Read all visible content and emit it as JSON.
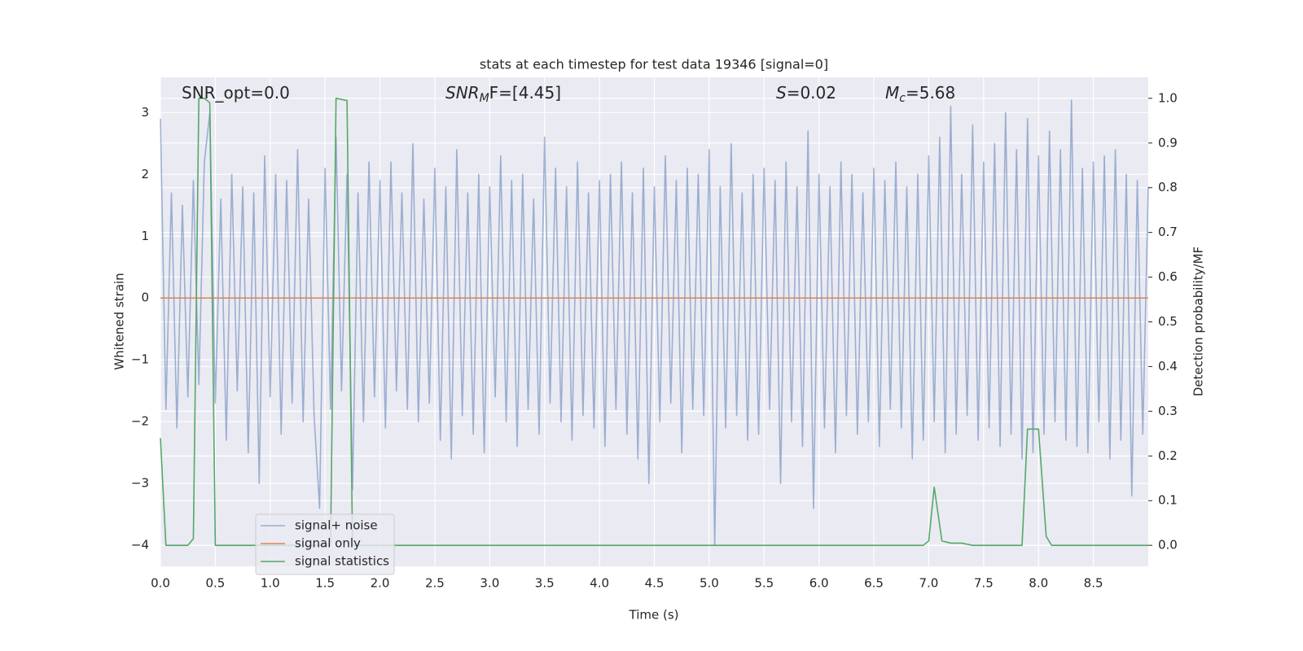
{
  "chart_data": {
    "type": "line",
    "title": "stats at each timestep for test data 19346 [signal=0]",
    "xlabel": "Time (s)",
    "ylabel": "Whitened strain",
    "y2label": "Detection probability/MF",
    "annotations": [
      {
        "base": "SNR_opt=0.0"
      },
      {
        "base": "SNR",
        "sub": "M",
        "tail": "F=[4.45]"
      },
      {
        "base": "S",
        "tail": "=0.02"
      },
      {
        "base": "M",
        "sub": "c",
        "tail": "=5.68"
      }
    ],
    "xlim": [
      0,
      9
    ],
    "ylim": [
      -4.34,
      3.57
    ],
    "y2lim": [
      -0.047,
      1.047
    ],
    "xticks": [
      {
        "value": 0,
        "label": "0.0"
      },
      0.5,
      {
        "value": 1,
        "label": "1.0"
      },
      1.5,
      {
        "value": 2,
        "label": "2.0"
      },
      2.5,
      {
        "value": 3,
        "label": "3.0"
      },
      3.5,
      {
        "value": 4,
        "label": "4.0"
      },
      4.5,
      {
        "value": 5,
        "label": "5.0"
      },
      5.5,
      {
        "value": 6,
        "label": "6.0"
      },
      6.5,
      {
        "value": 7,
        "label": "7.0"
      },
      7.5,
      {
        "value": 8,
        "label": "8.0"
      },
      8.5
    ],
    "yticks": [
      {
        "value": -4,
        "label": "−4"
      },
      {
        "value": -3,
        "label": "−3"
      },
      {
        "value": -2,
        "label": "−2"
      },
      {
        "value": -1,
        "label": "−1"
      },
      0,
      1,
      2,
      3
    ],
    "y2ticks": [
      {
        "value": 0,
        "label": "0.0"
      },
      0.1,
      0.2,
      0.3,
      0.4,
      0.5,
      0.6,
      0.7,
      0.8,
      0.9,
      {
        "value": 1,
        "label": "1.0"
      }
    ],
    "grid": true,
    "legend_loc": "lower left",
    "series": [
      {
        "name": "signal+ noise",
        "color": "#4c72b0",
        "opacity": 0.5,
        "x": [
          0,
          0.05,
          0.1,
          0.15,
          0.2,
          0.25,
          0.3,
          0.35,
          0.4,
          0.45,
          0.5,
          0.55,
          0.6,
          0.65,
          0.7,
          0.75,
          0.8,
          0.85,
          0.9,
          0.95,
          1,
          1.05,
          1.1,
          1.15,
          1.2,
          1.25,
          1.3,
          1.35,
          1.4,
          1.45,
          1.5,
          1.55,
          1.6,
          1.65,
          1.7,
          1.75,
          1.8,
          1.85,
          1.9,
          1.95,
          2,
          2.05,
          2.1,
          2.15,
          2.2,
          2.25,
          2.3,
          2.35,
          2.4,
          2.45,
          2.5,
          2.55,
          2.6,
          2.65,
          2.7,
          2.75,
          2.8,
          2.85,
          2.9,
          2.95,
          3,
          3.05,
          3.1,
          3.15,
          3.2,
          3.25,
          3.3,
          3.35,
          3.4,
          3.45,
          3.5,
          3.55,
          3.6,
          3.65,
          3.7,
          3.75,
          3.8,
          3.85,
          3.9,
          3.95,
          4,
          4.05,
          4.1,
          4.15,
          4.2,
          4.25,
          4.3,
          4.35,
          4.4,
          4.45,
          4.5,
          4.55,
          4.6,
          4.65,
          4.7,
          4.75,
          4.8,
          4.85,
          4.9,
          4.95,
          5,
          5.05,
          5.1,
          5.15,
          5.2,
          5.25,
          5.3,
          5.35,
          5.4,
          5.45,
          5.5,
          5.55,
          5.6,
          5.65,
          5.7,
          5.75,
          5.8,
          5.85,
          5.9,
          5.95,
          6,
          6.05,
          6.1,
          6.15,
          6.2,
          6.25,
          6.3,
          6.35,
          6.4,
          6.45,
          6.5,
          6.55,
          6.6,
          6.65,
          6.7,
          6.75,
          6.8,
          6.85,
          6.9,
          6.95,
          7,
          7.05,
          7.1,
          7.15,
          7.2,
          7.25,
          7.3,
          7.35,
          7.4,
          7.45,
          7.5,
          7.55,
          7.6,
          7.65,
          7.7,
          7.75,
          7.8,
          7.85,
          7.9,
          7.95,
          8,
          8.05,
          8.1,
          8.15,
          8.2,
          8.25,
          8.3,
          8.35,
          8.4,
          8.45,
          8.5,
          8.55,
          8.6,
          8.65,
          8.7,
          8.75,
          8.8,
          8.85,
          8.9,
          8.95,
          9
        ],
        "values": [
          2.9,
          -1.8,
          1.7,
          -2.1,
          1.5,
          -1.6,
          1.9,
          -1.4,
          2.2,
          3.0,
          -1.7,
          1.6,
          -2.3,
          2.0,
          -1.5,
          1.8,
          -2.5,
          1.7,
          -3.0,
          2.3,
          -1.6,
          2.0,
          -2.2,
          1.9,
          -1.7,
          2.4,
          -2.0,
          1.6,
          -1.9,
          -3.4,
          2.1,
          -1.8,
          2.6,
          -1.5,
          2.0,
          -3.1,
          1.7,
          -2.0,
          2.2,
          -1.6,
          1.9,
          -2.1,
          2.2,
          -1.5,
          1.7,
          -1.8,
          2.5,
          -2.0,
          1.6,
          -1.7,
          2.1,
          -2.3,
          1.8,
          -2.6,
          2.4,
          -1.9,
          1.7,
          -2.2,
          2.0,
          -2.5,
          1.8,
          -1.6,
          2.3,
          -2.0,
          1.9,
          -2.4,
          2.0,
          -1.8,
          1.6,
          -2.2,
          2.6,
          -1.7,
          2.1,
          -2.0,
          1.8,
          -2.3,
          2.2,
          -1.9,
          1.7,
          -2.1,
          1.9,
          -2.4,
          2.0,
          -1.8,
          2.2,
          -2.2,
          1.7,
          -2.6,
          2.1,
          -3.0,
          1.8,
          -2.0,
          2.3,
          -1.7,
          1.9,
          -2.5,
          2.1,
          -1.8,
          2.0,
          -1.9,
          2.4,
          -4.0,
          1.8,
          -2.1,
          2.5,
          -1.9,
          1.7,
          -2.3,
          2.0,
          -2.2,
          2.1,
          -1.8,
          1.9,
          -3.0,
          2.2,
          -2.0,
          1.8,
          -2.4,
          2.7,
          -3.4,
          2.0,
          -2.1,
          1.8,
          -2.5,
          2.2,
          -1.9,
          2.0,
          -2.2,
          1.7,
          -2.0,
          2.1,
          -2.4,
          1.9,
          -1.8,
          2.2,
          -2.1,
          1.8,
          -2.6,
          2.0,
          -2.3,
          2.3,
          -2.0,
          2.6,
          -2.5,
          3.1,
          -2.2,
          2.0,
          -1.9,
          2.8,
          -2.3,
          2.2,
          -2.1,
          2.5,
          -2.4,
          3.0,
          -2.2,
          2.4,
          -2.6,
          2.9,
          -2.5,
          2.3,
          -2.2,
          2.7,
          -2.0,
          2.4,
          -2.3,
          3.2,
          -2.4,
          2.1,
          -2.5,
          2.2,
          -2.0,
          2.3,
          -2.6,
          2.4,
          -2.3,
          2.0,
          -3.2,
          1.9,
          -2.2,
          1.8
        ]
      },
      {
        "name": "signal only",
        "color": "#dd8452",
        "x": [
          0,
          9
        ],
        "values": [
          0,
          0
        ]
      },
      {
        "name": "signal statistics",
        "color": "#55a868",
        "axis": "y2",
        "x": [
          0,
          0.05,
          0.25,
          0.3,
          0.35,
          0.4,
          0.45,
          0.5,
          1.55,
          1.6,
          1.7,
          1.75,
          6.95,
          7.0,
          7.05,
          7.12,
          7.2,
          7.3,
          7.4,
          7.85,
          7.9,
          8.0,
          8.07,
          8.12,
          9
        ],
        "values": [
          0.24,
          0.0,
          0.0,
          0.015,
          1.0,
          1.0,
          0.99,
          0.0,
          0.0,
          1.0,
          0.995,
          0.0,
          0.0,
          0.01,
          0.13,
          0.01,
          0.005,
          0.005,
          0.0,
          0.0,
          0.26,
          0.26,
          0.02,
          0.0,
          0.0
        ]
      }
    ]
  }
}
